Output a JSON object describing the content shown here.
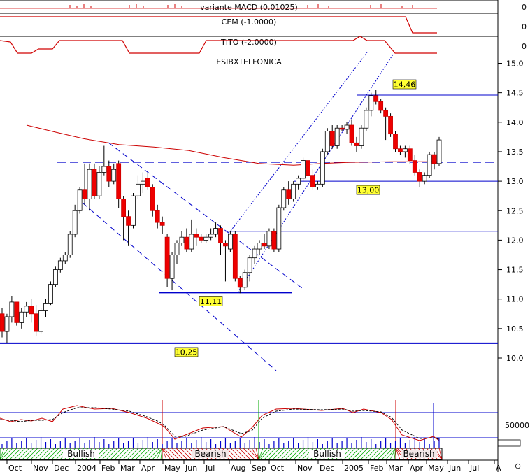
{
  "chart_data": {
    "type": "candlestick",
    "title": "ESIBXTELFONICA",
    "indicators": [
      {
        "label": "variante MACD (0.01025)",
        "axis_value": "0"
      },
      {
        "label": "CEM (-1.0000)",
        "axis_value": "0"
      },
      {
        "label": "TITO (-2.0000)",
        "axis_value": "0"
      }
    ],
    "y_ticks": [
      "15.0",
      "14.5",
      "14.0",
      "13.5",
      "13.0",
      "12.5",
      "12.0",
      "11.5",
      "11.0",
      "10.5",
      "10.0"
    ],
    "ylim": [
      9.8,
      15.3
    ],
    "volume_tick": "50000",
    "x_ticks": [
      "Oct",
      "Nov",
      "Dec",
      "2004",
      "Feb",
      "Mar",
      "Apr",
      "May",
      "Jun",
      "Jul",
      "Aug",
      "Sep",
      "Oct",
      "Nov",
      "Dec",
      "2005",
      "Feb",
      "Mar",
      "Apr",
      "May",
      "Jun",
      "Jul",
      "A"
    ],
    "levels": [
      {
        "label": "14,46",
        "value": 14.46
      },
      {
        "label": "13,00",
        "value": 13.0
      },
      {
        "label": "11,11",
        "value": 11.11
      },
      {
        "label": "10,25",
        "value": 10.25
      }
    ],
    "dashed_level": 13.32,
    "horizontal_line": 12.15,
    "trend_phases": [
      "Bullish",
      "Bearish",
      "Bullish",
      "Bearish"
    ],
    "candles": [
      [
        10.75,
        10.85,
        10.35,
        10.45
      ],
      [
        10.45,
        10.75,
        10.25,
        10.7
      ],
      [
        10.7,
        11.05,
        10.6,
        10.95
      ],
      [
        10.95,
        10.95,
        10.55,
        10.6
      ],
      [
        10.6,
        10.85,
        10.5,
        10.78
      ],
      [
        10.78,
        10.95,
        10.7,
        10.88
      ],
      [
        10.88,
        11.0,
        10.6,
        10.75
      ],
      [
        10.75,
        10.9,
        10.38,
        10.45
      ],
      [
        10.45,
        10.85,
        10.42,
        10.8
      ],
      [
        10.8,
        11.0,
        10.7,
        10.92
      ],
      [
        10.92,
        11.3,
        10.9,
        11.25
      ],
      [
        11.25,
        11.55,
        11.2,
        11.5
      ],
      [
        11.5,
        11.7,
        11.45,
        11.65
      ],
      [
        11.65,
        11.8,
        11.6,
        11.75
      ],
      [
        11.75,
        12.15,
        11.7,
        12.1
      ],
      [
        12.1,
        12.6,
        12.05,
        12.5
      ],
      [
        12.5,
        12.9,
        12.45,
        12.85
      ],
      [
        12.85,
        13.3,
        12.6,
        12.7
      ],
      [
        12.7,
        13.3,
        12.5,
        13.2
      ],
      [
        13.2,
        13.3,
        12.7,
        12.75
      ],
      [
        12.75,
        13.25,
        12.7,
        13.15
      ],
      [
        13.15,
        13.6,
        13.1,
        13.25
      ],
      [
        13.25,
        13.35,
        12.9,
        13.0
      ],
      [
        13.0,
        13.3,
        12.95,
        13.2
      ],
      [
        13.3,
        13.35,
        12.55,
        12.7
      ],
      [
        12.7,
        12.75,
        12.0,
        12.4
      ],
      [
        12.4,
        12.5,
        11.9,
        12.25
      ],
      [
        12.25,
        12.8,
        12.2,
        12.75
      ],
      [
        12.75,
        13.1,
        12.7,
        12.95
      ],
      [
        12.95,
        13.15,
        12.8,
        13.0
      ],
      [
        13.05,
        13.15,
        12.85,
        12.9
      ],
      [
        12.9,
        12.95,
        12.4,
        12.5
      ],
      [
        12.5,
        12.6,
        12.2,
        12.3
      ],
      [
        12.3,
        12.4,
        12.1,
        12.25
      ],
      [
        12.05,
        12.1,
        11.2,
        11.35
      ],
      [
        11.35,
        11.8,
        11.15,
        11.75
      ],
      [
        11.75,
        12.0,
        11.6,
        11.95
      ],
      [
        11.95,
        12.15,
        11.9,
        12.05
      ],
      [
        12.05,
        12.2,
        11.8,
        11.85
      ],
      [
        11.85,
        12.35,
        11.8,
        12.1
      ],
      [
        12.1,
        12.2,
        11.9,
        12.05
      ],
      [
        12.05,
        12.1,
        11.95,
        12.0
      ],
      [
        12.0,
        12.1,
        11.95,
        12.05
      ],
      [
        12.05,
        12.2,
        12.0,
        12.1
      ],
      [
        12.1,
        12.3,
        12.05,
        12.2
      ],
      [
        12.2,
        12.25,
        11.75,
        11.95
      ],
      [
        11.95,
        12.0,
        11.3,
        11.9
      ],
      [
        11.85,
        12.15,
        11.8,
        12.1
      ],
      [
        12.1,
        12.15,
        11.3,
        11.35
      ],
      [
        11.35,
        11.4,
        11.1,
        11.2
      ],
      [
        11.2,
        11.5,
        11.15,
        11.45
      ],
      [
        11.45,
        11.75,
        11.3,
        11.7
      ],
      [
        11.7,
        11.9,
        11.6,
        11.85
      ],
      [
        11.85,
        12.0,
        11.75,
        11.95
      ],
      [
        11.95,
        12.1,
        11.85,
        11.9
      ],
      [
        11.9,
        12.2,
        11.85,
        12.15
      ],
      [
        12.15,
        12.2,
        11.8,
        11.85
      ],
      [
        11.85,
        12.6,
        11.8,
        12.55
      ],
      [
        12.55,
        12.9,
        12.5,
        12.85
      ],
      [
        12.85,
        13.0,
        12.6,
        12.7
      ],
      [
        12.7,
        13.0,
        12.65,
        12.95
      ],
      [
        12.95,
        13.1,
        12.85,
        13.05
      ],
      [
        13.05,
        13.4,
        13.0,
        13.35
      ],
      [
        13.35,
        13.45,
        13.0,
        13.1
      ],
      [
        13.1,
        13.2,
        12.85,
        12.9
      ],
      [
        12.9,
        13.0,
        12.85,
        12.95
      ],
      [
        12.95,
        13.55,
        12.9,
        13.5
      ],
      [
        13.5,
        13.9,
        13.45,
        13.85
      ],
      [
        13.85,
        13.95,
        13.55,
        13.6
      ],
      [
        13.6,
        13.95,
        13.55,
        13.9
      ],
      [
        13.9,
        13.95,
        13.85,
        13.88
      ],
      [
        13.88,
        14.0,
        13.8,
        13.95
      ],
      [
        13.95,
        14.05,
        13.6,
        13.65
      ],
      [
        13.65,
        13.75,
        13.5,
        13.6
      ],
      [
        13.6,
        13.95,
        13.55,
        13.9
      ],
      [
        13.9,
        14.25,
        13.85,
        14.2
      ],
      [
        14.2,
        14.5,
        14.1,
        14.45
      ],
      [
        14.45,
        14.55,
        14.3,
        14.35
      ],
      [
        14.35,
        14.4,
        14.15,
        14.2
      ],
      [
        14.2,
        14.25,
        13.7,
        14.1
      ],
      [
        14.1,
        14.15,
        13.75,
        13.8
      ],
      [
        13.8,
        13.85,
        13.5,
        13.55
      ],
      [
        13.55,
        13.6,
        13.45,
        13.5
      ],
      [
        13.5,
        13.6,
        13.4,
        13.55
      ],
      [
        13.55,
        13.6,
        13.3,
        13.35
      ],
      [
        13.35,
        13.45,
        13.1,
        13.15
      ],
      [
        13.15,
        13.2,
        12.9,
        13.0
      ],
      [
        13.0,
        13.15,
        12.95,
        13.1
      ],
      [
        13.1,
        13.5,
        13.05,
        13.45
      ],
      [
        13.45,
        13.5,
        13.2,
        13.3
      ],
      [
        13.3,
        13.75,
        13.25,
        13.7
      ]
    ]
  },
  "footer_glyph": "⊖"
}
